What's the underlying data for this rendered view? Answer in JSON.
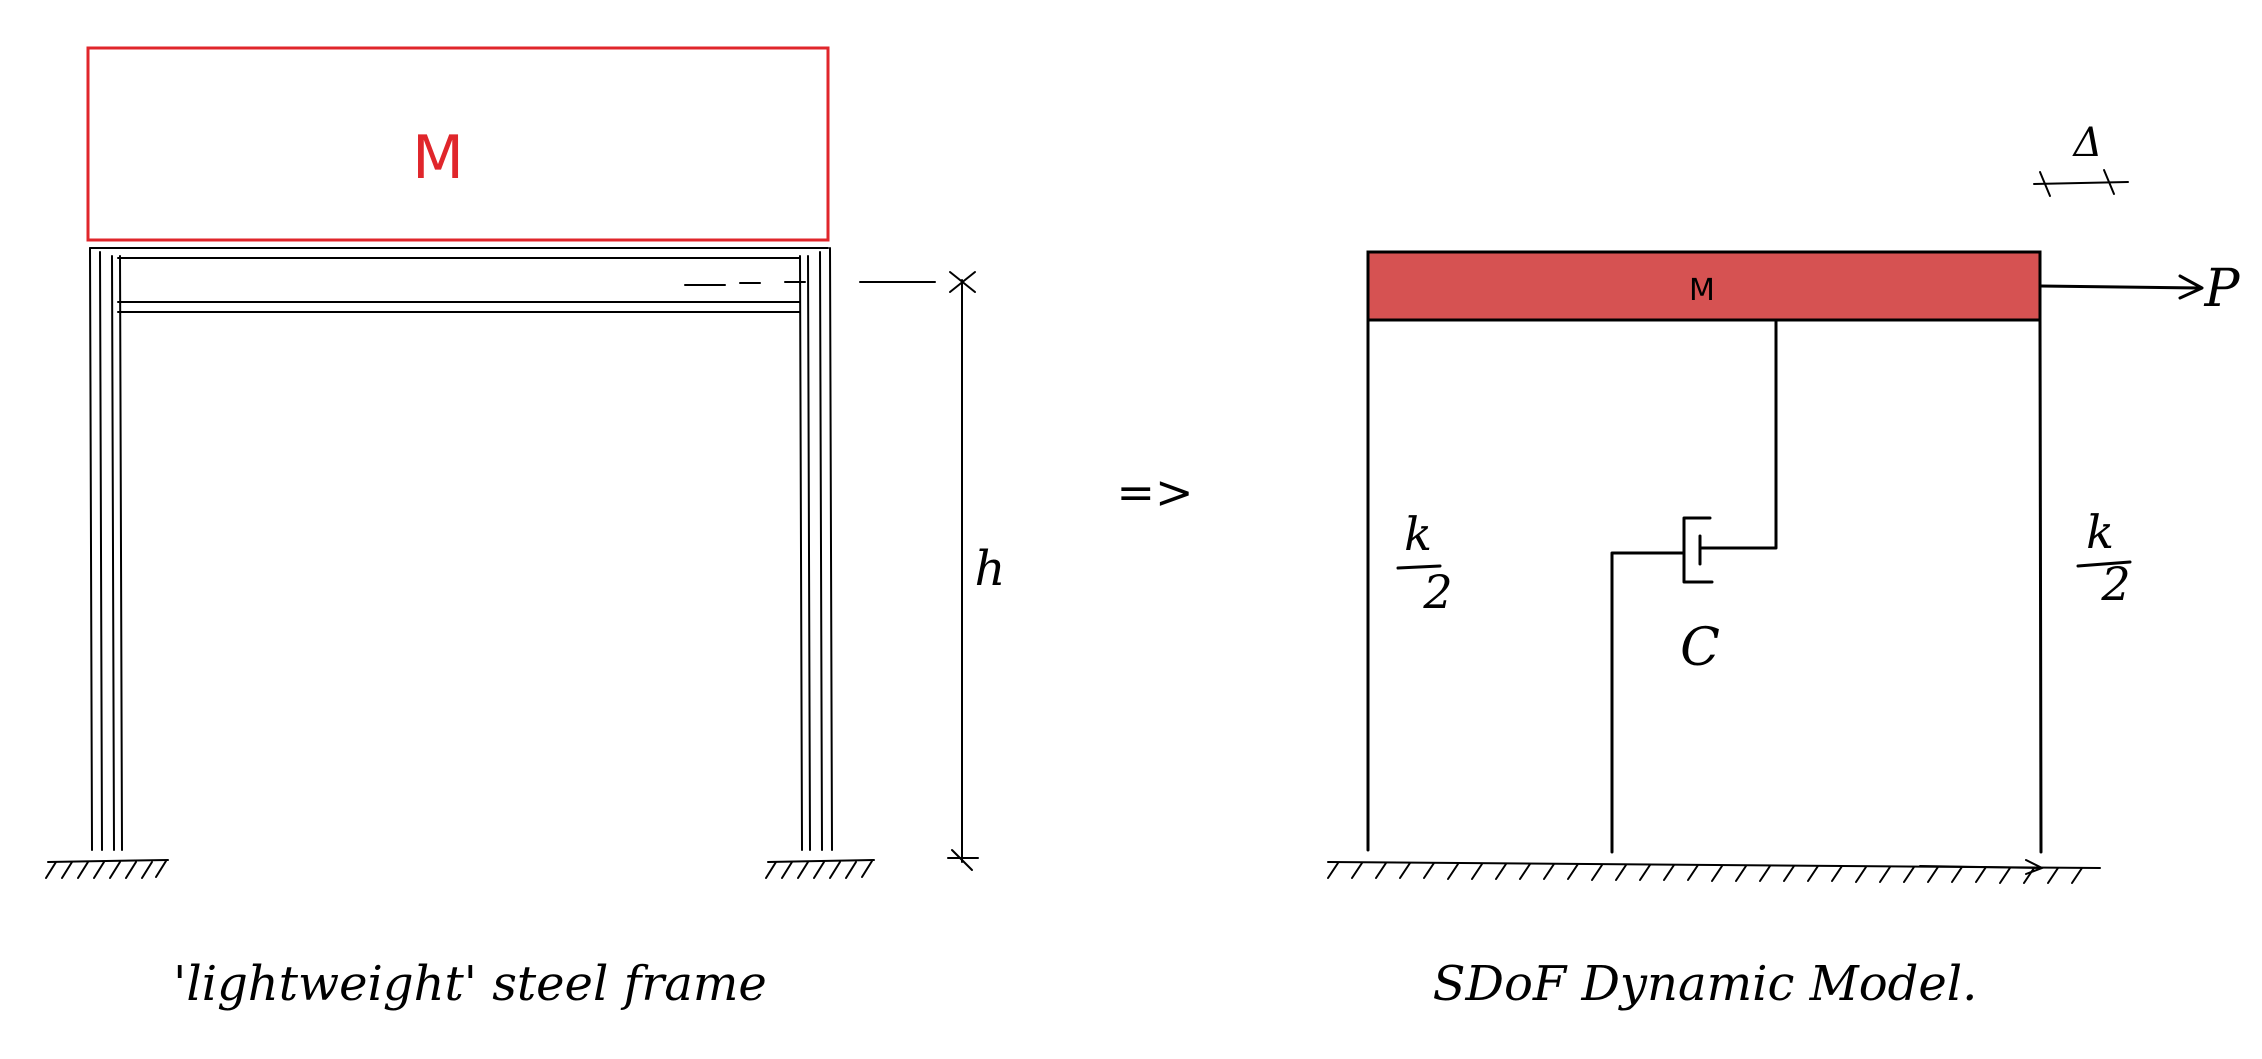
{
  "left_frame": {
    "mass_label": "M",
    "height_label": "h",
    "caption": "'lightweight' steel frame",
    "mass_outline_color": "#e0262b"
  },
  "arrow_symbol": "=>",
  "right_model": {
    "mass_label": "M",
    "mass_fill_color": "#d65252",
    "stiffness_left": {
      "numerator": "k",
      "denominator": "2"
    },
    "stiffness_right": {
      "numerator": "k",
      "denominator": "2"
    },
    "damper_label": "C",
    "force_label": "P",
    "displacement_label": "Δ",
    "caption": "SDoF Dynamic Model."
  }
}
